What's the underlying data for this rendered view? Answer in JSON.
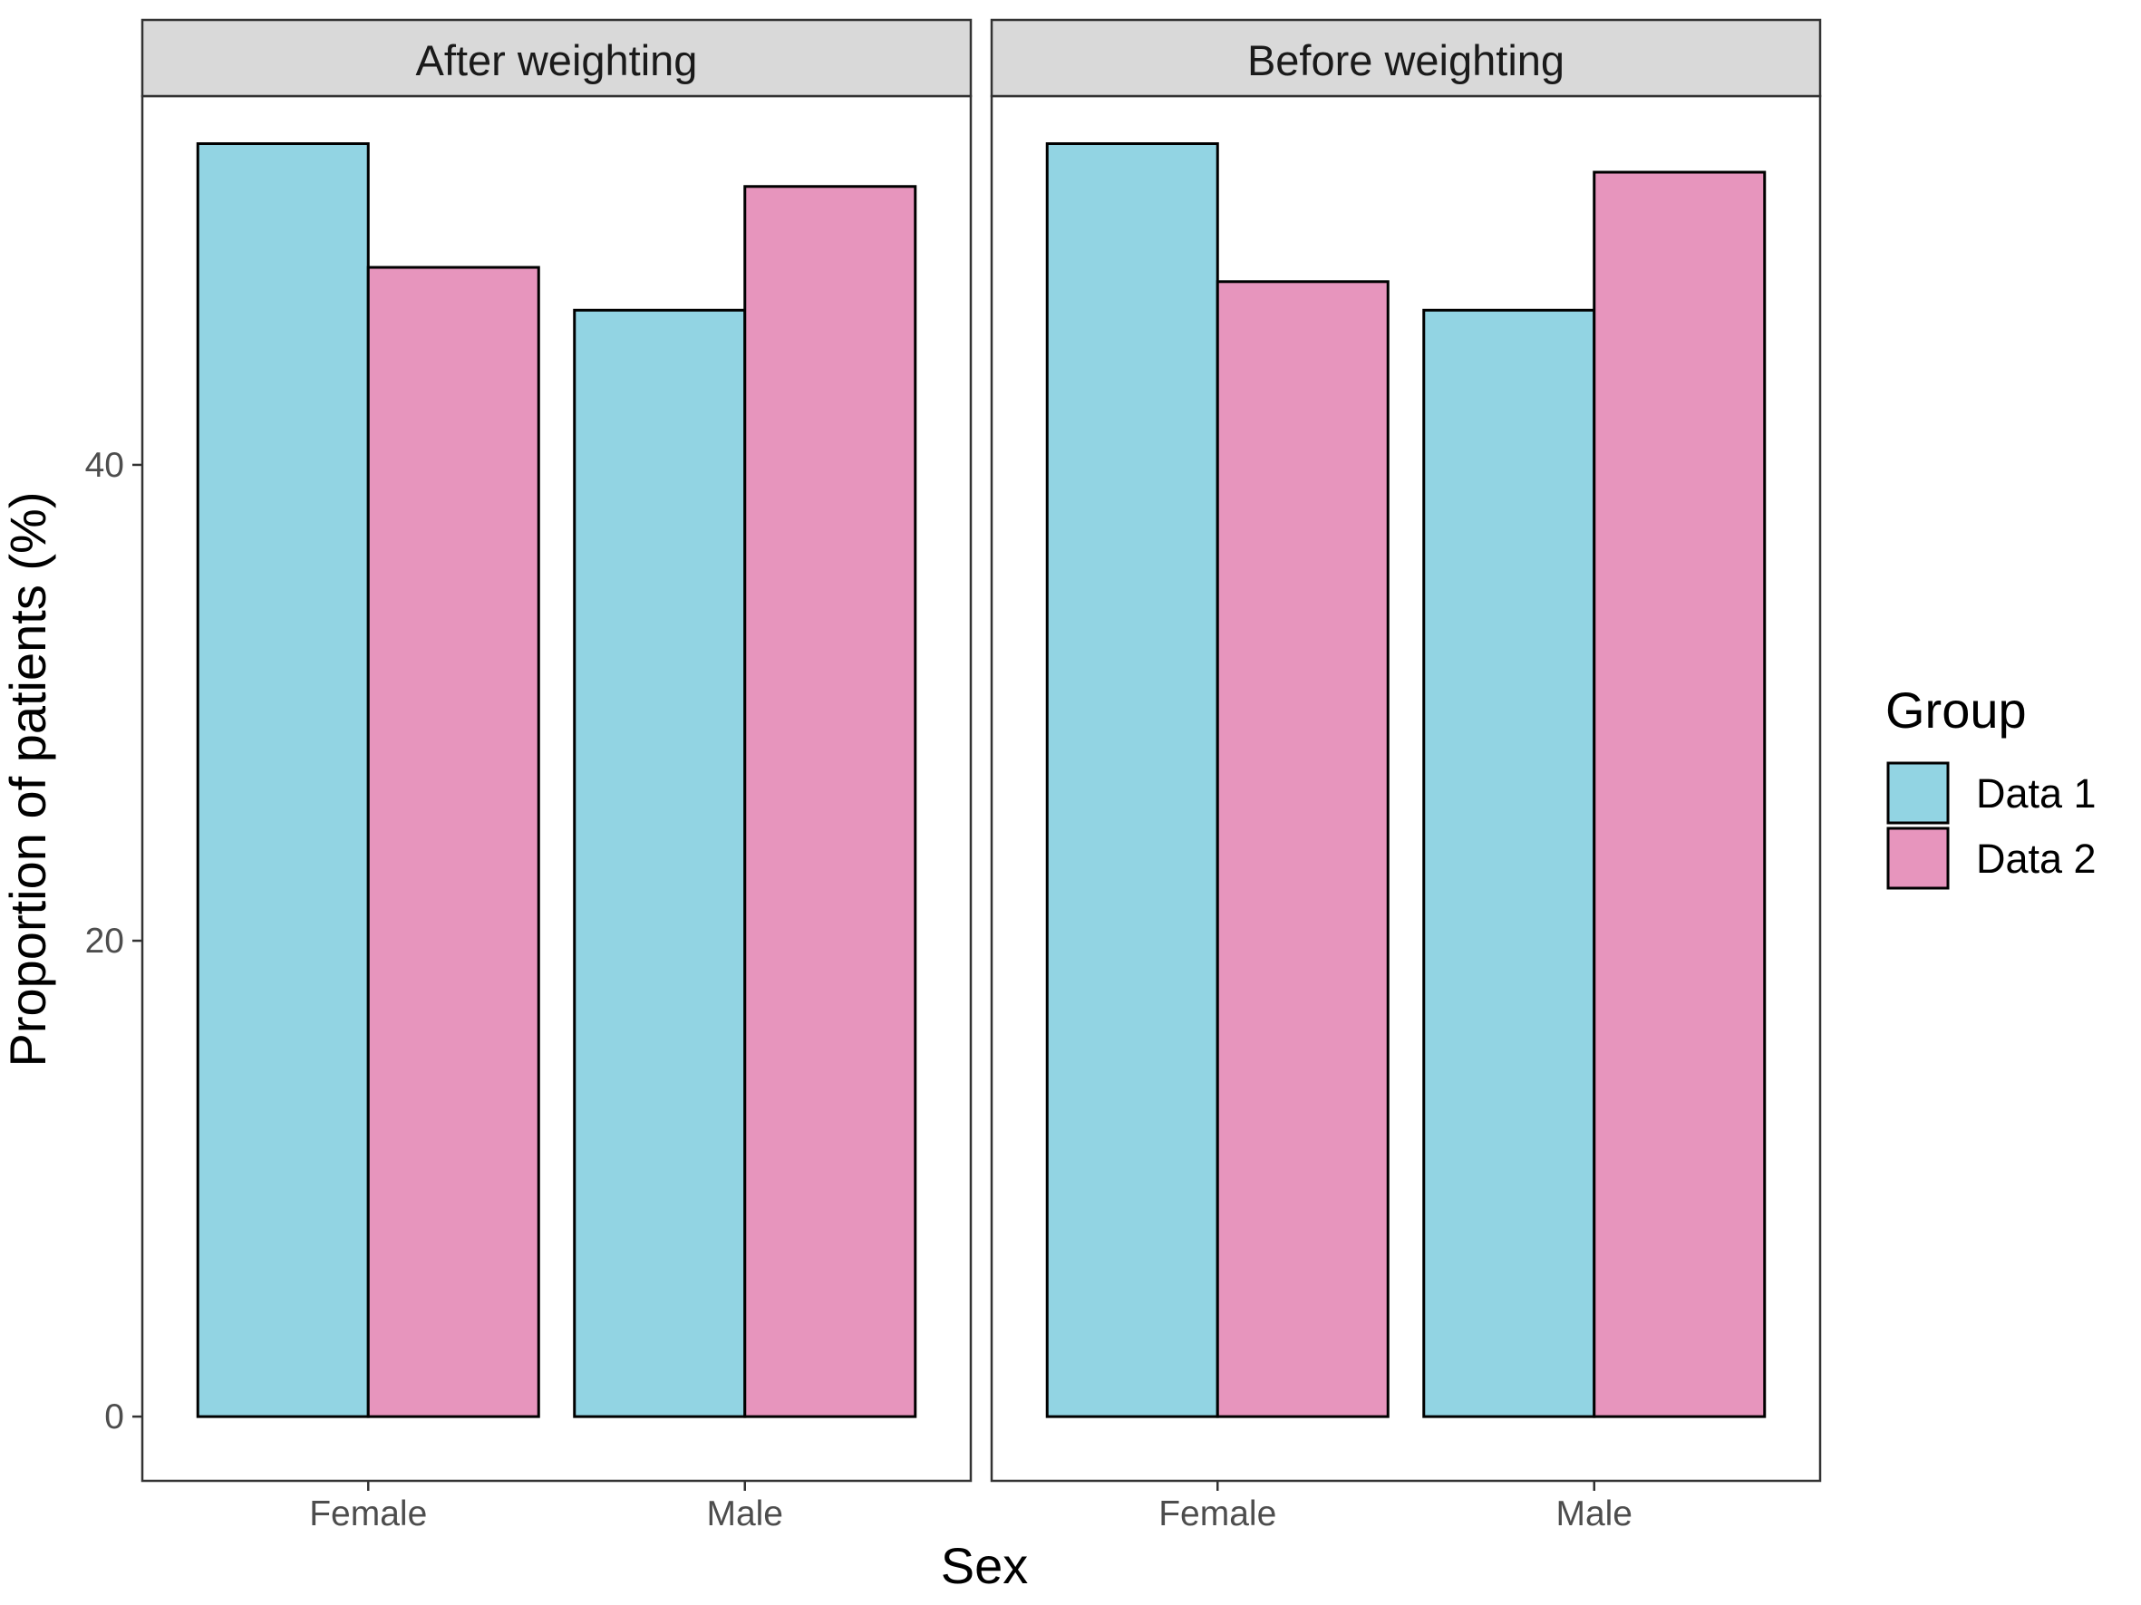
{
  "chart_data": {
    "type": "bar",
    "facets": [
      "After weighting",
      "Before weighting"
    ],
    "categories": [
      "Female",
      "Male"
    ],
    "xlabel": "Sex",
    "ylabel": "Proportion of patients (%)",
    "ylim": [
      -2.7,
      55.5
    ],
    "yticks": [
      0,
      20,
      40
    ],
    "grid": false,
    "legend": {
      "title": "Group",
      "position": "right",
      "entries": [
        "Data 1",
        "Data 2"
      ]
    },
    "series": [
      {
        "name": "Data 1",
        "color": "#92D4E3",
        "values": {
          "After weighting": [
            53.5,
            46.5
          ],
          "Before weighting": [
            53.5,
            46.5
          ]
        }
      },
      {
        "name": "Data 2",
        "color": "#E795BD",
        "values": {
          "After weighting": [
            48.3,
            51.7
          ],
          "Before weighting": [
            47.7,
            52.3
          ]
        }
      }
    ]
  }
}
